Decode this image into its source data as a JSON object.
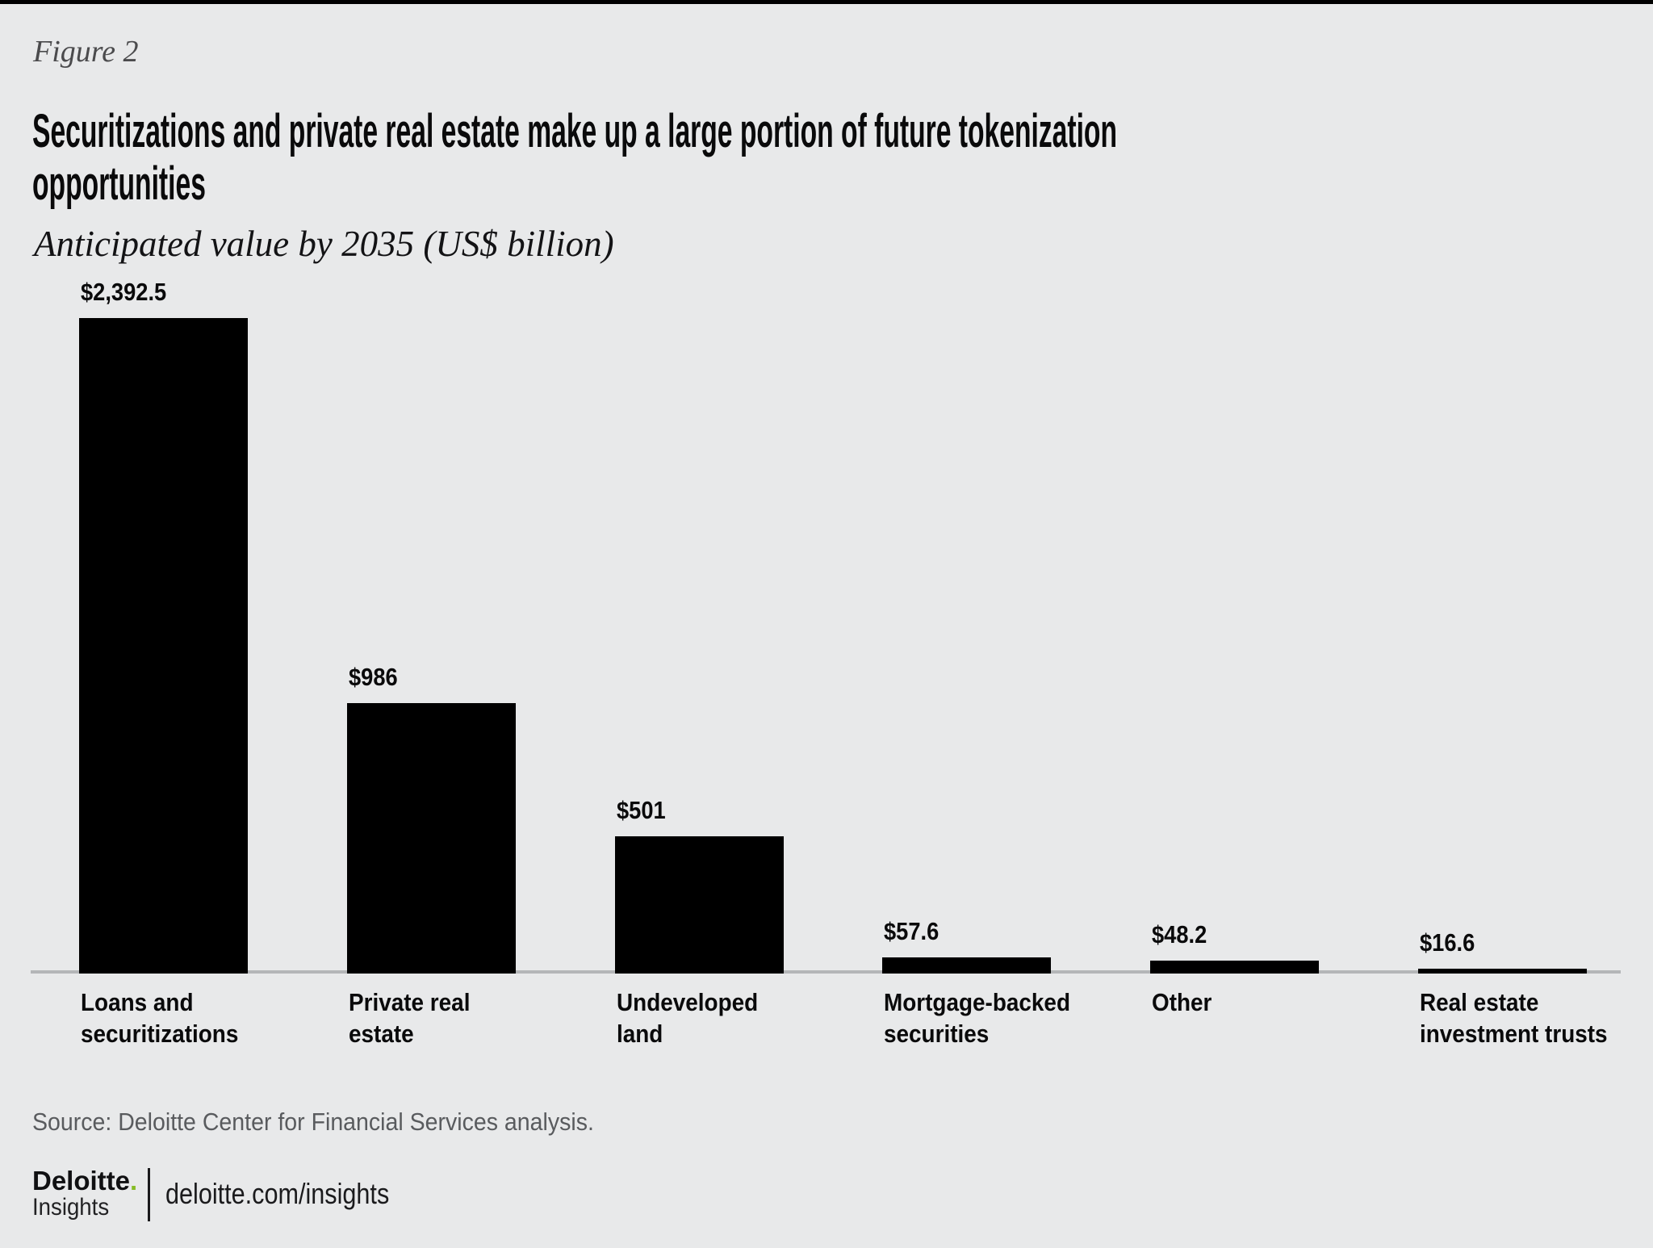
{
  "header": {
    "figure_label": "Figure 2",
    "title": "Securitizations and private real estate make up a large portion of future tokenization opportunities",
    "subtitle": "Anticipated value by 2035 (US$ billion)"
  },
  "chart_data": {
    "type": "bar",
    "orientation": "vertical",
    "title": "Securitizations and private real estate make up a large portion of future tokenization opportunities",
    "subtitle": "Anticipated value by 2035 (US$ billion)",
    "unit": "US$ billion",
    "categories": [
      "Loans and securitizations",
      "Private real estate",
      "Undeveloped land",
      "Mortgage-backed securities",
      "Other",
      "Real estate investment trusts"
    ],
    "values": [
      2392.5,
      986,
      501,
      57.6,
      48.2,
      16.6
    ],
    "value_labels": [
      "$2,392.5",
      "$986",
      "$501",
      "$57.6",
      "$48.2",
      "$16.6"
    ],
    "ylim": [
      0,
      2392.5
    ],
    "grid": false,
    "legend": "none",
    "bar_color": "#000000",
    "background_color": "#e8e9ea",
    "axis_line_color": "#b4b6b8"
  },
  "bars": [
    {
      "value_label": "$2,392.5",
      "label_lines": [
        "Loans and",
        "securitizations"
      ]
    },
    {
      "value_label": "$986",
      "label_lines": [
        "Private real",
        "estate"
      ]
    },
    {
      "value_label": "$501",
      "label_lines": [
        "Undeveloped",
        "land"
      ]
    },
    {
      "value_label": "$57.6",
      "label_lines": [
        "Mortgage-backed",
        "securities"
      ]
    },
    {
      "value_label": "$48.2",
      "label_lines": [
        "Other"
      ]
    },
    {
      "value_label": "$16.6",
      "label_lines": [
        "Real estate",
        "investment trusts"
      ]
    }
  ],
  "footer": {
    "source": "Source: Deloitte Center for Financial Services analysis.",
    "brand": "Deloitte",
    "brand_dot": ".",
    "brand_sub": "Insights",
    "site": "deloitte.com/insights",
    "accent_color": "#86bc25"
  }
}
